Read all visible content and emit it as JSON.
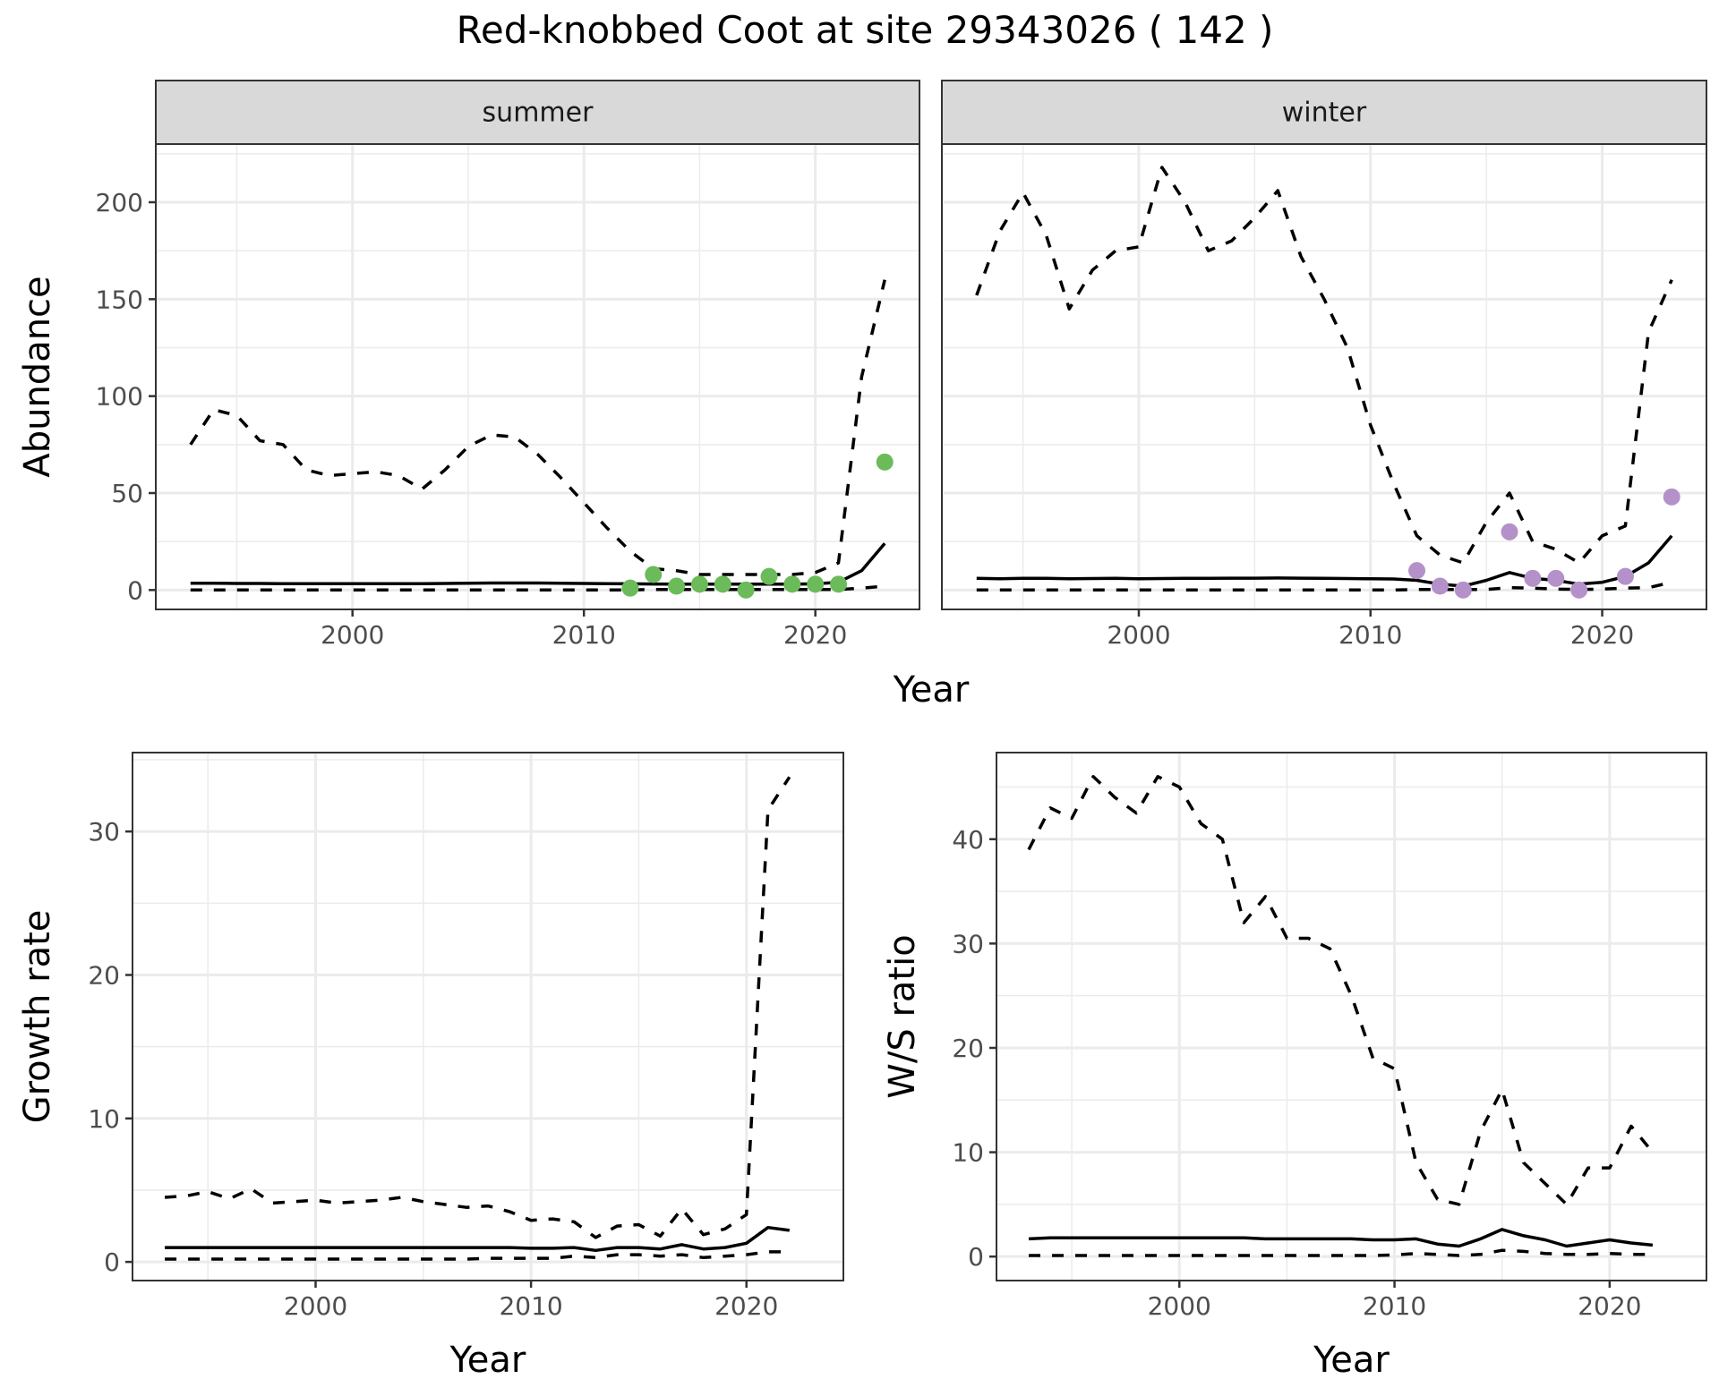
{
  "chart_data": {
    "title": "Red-knobbed Coot at site 29343026 ( 142 )",
    "panels": [
      {
        "id": "abundance-summer",
        "type": "line",
        "strip": "summer",
        "xlabel": "Year",
        "ylabel": "Abundance",
        "xlim": [
          1991.5,
          2024.5
        ],
        "ylim": [
          -10,
          230
        ],
        "xticks": [
          2000,
          2010,
          2020
        ],
        "yticks": [
          0,
          50,
          100,
          150,
          200
        ],
        "grid": true,
        "x": [
          1993,
          1994,
          1995,
          1996,
          1997,
          1998,
          1999,
          2000,
          2001,
          2002,
          2003,
          2004,
          2005,
          2006,
          2007,
          2008,
          2009,
          2010,
          2011,
          2012,
          2013,
          2014,
          2015,
          2016,
          2017,
          2018,
          2019,
          2020,
          2021,
          2022,
          2023
        ],
        "series": [
          {
            "name": "upper",
            "style": "dashed",
            "values": [
              75,
              93,
              90,
              77,
              75,
              62,
              59,
              60,
              61,
              59,
              52,
              62,
              74,
              80,
              79,
              70,
              58,
              45,
              32,
              20,
              11,
              10,
              8,
              8,
              8,
              8,
              8,
              9,
              14,
              110,
              160
            ]
          },
          {
            "name": "estimate",
            "style": "solid",
            "values": [
              3.5,
              3.5,
              3.4,
              3.4,
              3.3,
              3.3,
              3.3,
              3.3,
              3.3,
              3.3,
              3.3,
              3.4,
              3.5,
              3.6,
              3.6,
              3.6,
              3.5,
              3.4,
              3.3,
              3.2,
              3.1,
              3.0,
              3.0,
              3.0,
              3.0,
              3.0,
              3.0,
              3.2,
              4,
              10,
              24
            ]
          },
          {
            "name": "lower",
            "style": "dashed",
            "values": [
              0,
              0,
              0,
              0,
              0,
              0,
              0,
              0,
              0,
              0,
              0,
              0,
              0,
              0,
              0,
              0,
              0,
              0,
              0,
              0,
              0.3,
              0.3,
              0.3,
              0.3,
              0.3,
              0.3,
              0.3,
              0.3,
              0.3,
              1,
              2
            ]
          }
        ],
        "points": {
          "color": "#6BBB5A",
          "x": [
            2012,
            2013,
            2014,
            2015,
            2016,
            2017,
            2018,
            2019,
            2020,
            2021,
            2023
          ],
          "y": [
            1,
            8,
            2,
            3,
            3,
            0,
            7,
            3,
            3,
            3,
            66
          ]
        }
      },
      {
        "id": "abundance-winter",
        "type": "line",
        "strip": "winter",
        "xlabel": "Year",
        "ylabel": "Abundance",
        "xlim": [
          1991.5,
          2024.5
        ],
        "ylim": [
          -10,
          230
        ],
        "xticks": [
          2000,
          2010,
          2020
        ],
        "yticks": [
          0,
          50,
          100,
          150,
          200
        ],
        "grid": true,
        "x": [
          1993,
          1994,
          1995,
          1996,
          1997,
          1998,
          1999,
          2000,
          2001,
          2002,
          2003,
          2004,
          2005,
          2006,
          2007,
          2008,
          2009,
          2010,
          2011,
          2012,
          2013,
          2014,
          2015,
          2016,
          2017,
          2018,
          2019,
          2020,
          2021,
          2022,
          2023
        ],
        "series": [
          {
            "name": "upper",
            "style": "dashed",
            "values": [
              152,
              185,
              205,
              183,
              145,
              165,
              175,
              177,
              218,
              200,
              175,
              180,
              192,
              206,
              172,
              150,
              125,
              85,
              55,
              28,
              18,
              14,
              35,
              50,
              25,
              21,
              14,
              28,
              33,
              133,
              160
            ]
          },
          {
            "name": "estimate",
            "style": "solid",
            "values": [
              6,
              5.8,
              6,
              6,
              5.8,
              5.9,
              6,
              5.8,
              5.9,
              6,
              6,
              6.1,
              6.1,
              6.2,
              6.1,
              6,
              5.9,
              5.8,
              5.7,
              5,
              3,
              2,
              5,
              9,
              6,
              5,
              3,
              4,
              7,
              14,
              28
            ]
          },
          {
            "name": "lower",
            "style": "dashed",
            "values": [
              0,
              0,
              0,
              0,
              0,
              0,
              0,
              0,
              0,
              0,
              0,
              0,
              0,
              0,
              0,
              0,
              0,
              0,
              0,
              0.3,
              0.3,
              0.3,
              0.3,
              1.2,
              1,
              0.5,
              0.3,
              0.5,
              1,
              1.2,
              4
            ]
          }
        ],
        "points": {
          "color": "#B491C8",
          "x": [
            2012,
            2013,
            2014,
            2016,
            2017,
            2018,
            2019,
            2021,
            2023
          ],
          "y": [
            10,
            2,
            0,
            30,
            6,
            6,
            0,
            7,
            48
          ]
        }
      },
      {
        "id": "growth-rate",
        "type": "line",
        "strip": "",
        "xlabel": "Year",
        "ylabel": "Growth rate",
        "xlim": [
          1991.5,
          2024.5
        ],
        "ylim": [
          -1.3,
          35.5
        ],
        "xticks": [
          2000,
          2010,
          2020
        ],
        "yticks": [
          0,
          10,
          20,
          30
        ],
        "grid": true,
        "x": [
          1993,
          1994,
          1995,
          1996,
          1997,
          1998,
          1999,
          2000,
          2001,
          2002,
          2003,
          2004,
          2005,
          2006,
          2007,
          2008,
          2009,
          2010,
          2011,
          2012,
          2013,
          2014,
          2015,
          2016,
          2017,
          2018,
          2019,
          2020,
          2021,
          2022
        ],
        "series": [
          {
            "name": "upper",
            "style": "dashed",
            "values": [
              4.5,
              4.6,
              4.9,
              4.4,
              5.1,
              4.1,
              4.2,
              4.3,
              4.1,
              4.2,
              4.3,
              4.5,
              4.2,
              4.0,
              3.8,
              3.9,
              3.5,
              2.9,
              3.0,
              2.8,
              1.7,
              2.5,
              2.6,
              1.8,
              3.7,
              1.9,
              2.3,
              3.3,
              31.5,
              33.8
            ]
          },
          {
            "name": "estimate",
            "style": "solid",
            "values": [
              1.0,
              1.0,
              1.0,
              1.0,
              1.0,
              1.0,
              1.0,
              1.0,
              1.0,
              1.0,
              1.0,
              1.0,
              1.0,
              1.0,
              1.0,
              1.0,
              1.0,
              0.95,
              0.95,
              1.0,
              0.8,
              1.0,
              1.0,
              0.9,
              1.2,
              0.9,
              1.0,
              1.3,
              2.4,
              2.2
            ]
          },
          {
            "name": "lower",
            "style": "dashed",
            "values": [
              0.2,
              0.2,
              0.2,
              0.2,
              0.2,
              0.2,
              0.2,
              0.2,
              0.2,
              0.2,
              0.2,
              0.2,
              0.2,
              0.2,
              0.2,
              0.25,
              0.25,
              0.25,
              0.25,
              0.4,
              0.3,
              0.5,
              0.5,
              0.4,
              0.5,
              0.3,
              0.4,
              0.5,
              0.7,
              0.7
            ]
          }
        ]
      },
      {
        "id": "ws-ratio",
        "type": "line",
        "strip": "",
        "xlabel": "Year",
        "ylabel": "W/S ratio",
        "xlim": [
          1991.5,
          2024.5
        ],
        "ylim": [
          -2.3,
          48.3
        ],
        "xticks": [
          2000,
          2010,
          2020
        ],
        "yticks": [
          0,
          10,
          20,
          30,
          40
        ],
        "grid": true,
        "x": [
          1993,
          1994,
          1995,
          1996,
          1997,
          1998,
          1999,
          2000,
          2001,
          2002,
          2003,
          2004,
          2005,
          2006,
          2007,
          2008,
          2009,
          2010,
          2011,
          2012,
          2013,
          2014,
          2015,
          2016,
          2017,
          2018,
          2019,
          2020,
          2021,
          2022
        ],
        "series": [
          {
            "name": "upper",
            "style": "dashed",
            "values": [
              39,
              43,
              42,
              46,
              44,
              42.5,
              46,
              45,
              41.5,
              40,
              32,
              34.5,
              30.5,
              30.5,
              29.5,
              25,
              19,
              18,
              9,
              5.5,
              5,
              12,
              16,
              9,
              7,
              5,
              8.5,
              8.5,
              12.5,
              10
            ]
          },
          {
            "name": "estimate",
            "style": "solid",
            "values": [
              1.7,
              1.8,
              1.8,
              1.8,
              1.8,
              1.8,
              1.8,
              1.8,
              1.8,
              1.8,
              1.8,
              1.7,
              1.7,
              1.7,
              1.7,
              1.7,
              1.6,
              1.6,
              1.7,
              1.2,
              1.0,
              1.7,
              2.6,
              2.0,
              1.6,
              1.0,
              1.3,
              1.6,
              1.3,
              1.1
            ]
          },
          {
            "name": "lower",
            "style": "dashed",
            "values": [
              0.1,
              0.1,
              0.1,
              0.1,
              0.1,
              0.1,
              0.1,
              0.1,
              0.1,
              0.1,
              0.1,
              0.1,
              0.1,
              0.1,
              0.1,
              0.1,
              0.1,
              0.15,
              0.3,
              0.2,
              0.1,
              0.2,
              0.6,
              0.5,
              0.3,
              0.2,
              0.2,
              0.3,
              0.2,
              0.2
            ]
          }
        ]
      }
    ]
  }
}
